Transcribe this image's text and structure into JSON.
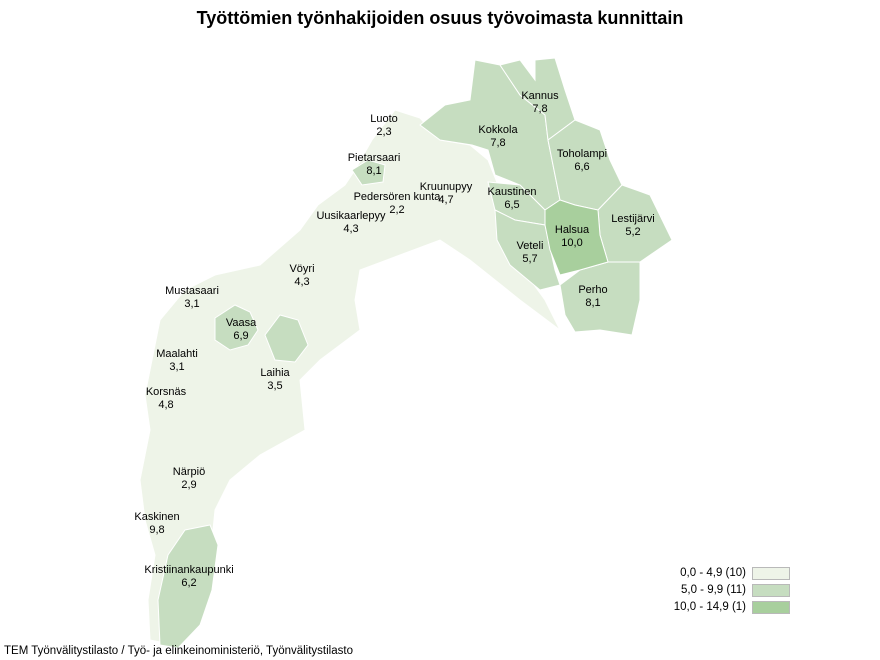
{
  "title": "Työttömien työnhakijoiden osuus työvoimasta kunnittain",
  "source": "TEM Työnvälitystilasto / Työ- ja elinkeinoministeriö, Työnvälitystilasto",
  "colors": {
    "low": "#eef4e8",
    "mid": "#c6ddc0",
    "high": "#a8cf9d",
    "border": "#ffffff"
  },
  "legend": [
    {
      "label": "0,0 - 4,9 (10)",
      "class": "low"
    },
    {
      "label": "5,0 - 9,9 (11)",
      "class": "mid"
    },
    {
      "label": "10,0 - 14,9 (1)",
      "class": "high"
    }
  ],
  "municipalities": [
    {
      "name": "Kannus",
      "value": "7,8",
      "class": "mid"
    },
    {
      "name": "Kokkola",
      "value": "7,8",
      "class": "mid"
    },
    {
      "name": "Luoto",
      "value": "2,3",
      "class": "low"
    },
    {
      "name": "Pietarsaari",
      "value": "8,1",
      "class": "mid"
    },
    {
      "name": "Toholampi",
      "value": "6,6",
      "class": "mid"
    },
    {
      "name": "Kruunupyy",
      "value": "4,7",
      "class": "low"
    },
    {
      "name": "Pedersören kunta",
      "value": "2,2",
      "class": "low"
    },
    {
      "name": "Kaustinen",
      "value": "6,5",
      "class": "mid"
    },
    {
      "name": "Uusikaarlepyy",
      "value": "4,3",
      "class": "low"
    },
    {
      "name": "Lestijärvi",
      "value": "5,2",
      "class": "mid"
    },
    {
      "name": "Halsua",
      "value": "10,0",
      "class": "high"
    },
    {
      "name": "Veteli",
      "value": "5,7",
      "class": "mid"
    },
    {
      "name": "Vöyri",
      "value": "4,3",
      "class": "low"
    },
    {
      "name": "Perho",
      "value": "8,1",
      "class": "mid"
    },
    {
      "name": "Mustasaari",
      "value": "3,1",
      "class": "low"
    },
    {
      "name": "Vaasa",
      "value": "6,9",
      "class": "mid"
    },
    {
      "name": "Maalahti",
      "value": "3,1",
      "class": "low"
    },
    {
      "name": "Laihia",
      "value": "3,5",
      "class": "low"
    },
    {
      "name": "Korsnäs",
      "value": "4,8",
      "class": "low"
    },
    {
      "name": "Närpiö",
      "value": "2,9",
      "class": "low"
    },
    {
      "name": "Kaskinen",
      "value": "9,8",
      "class": "mid"
    },
    {
      "name": "Kristiinankaupunki",
      "value": "6,2",
      "class": "mid"
    }
  ]
}
